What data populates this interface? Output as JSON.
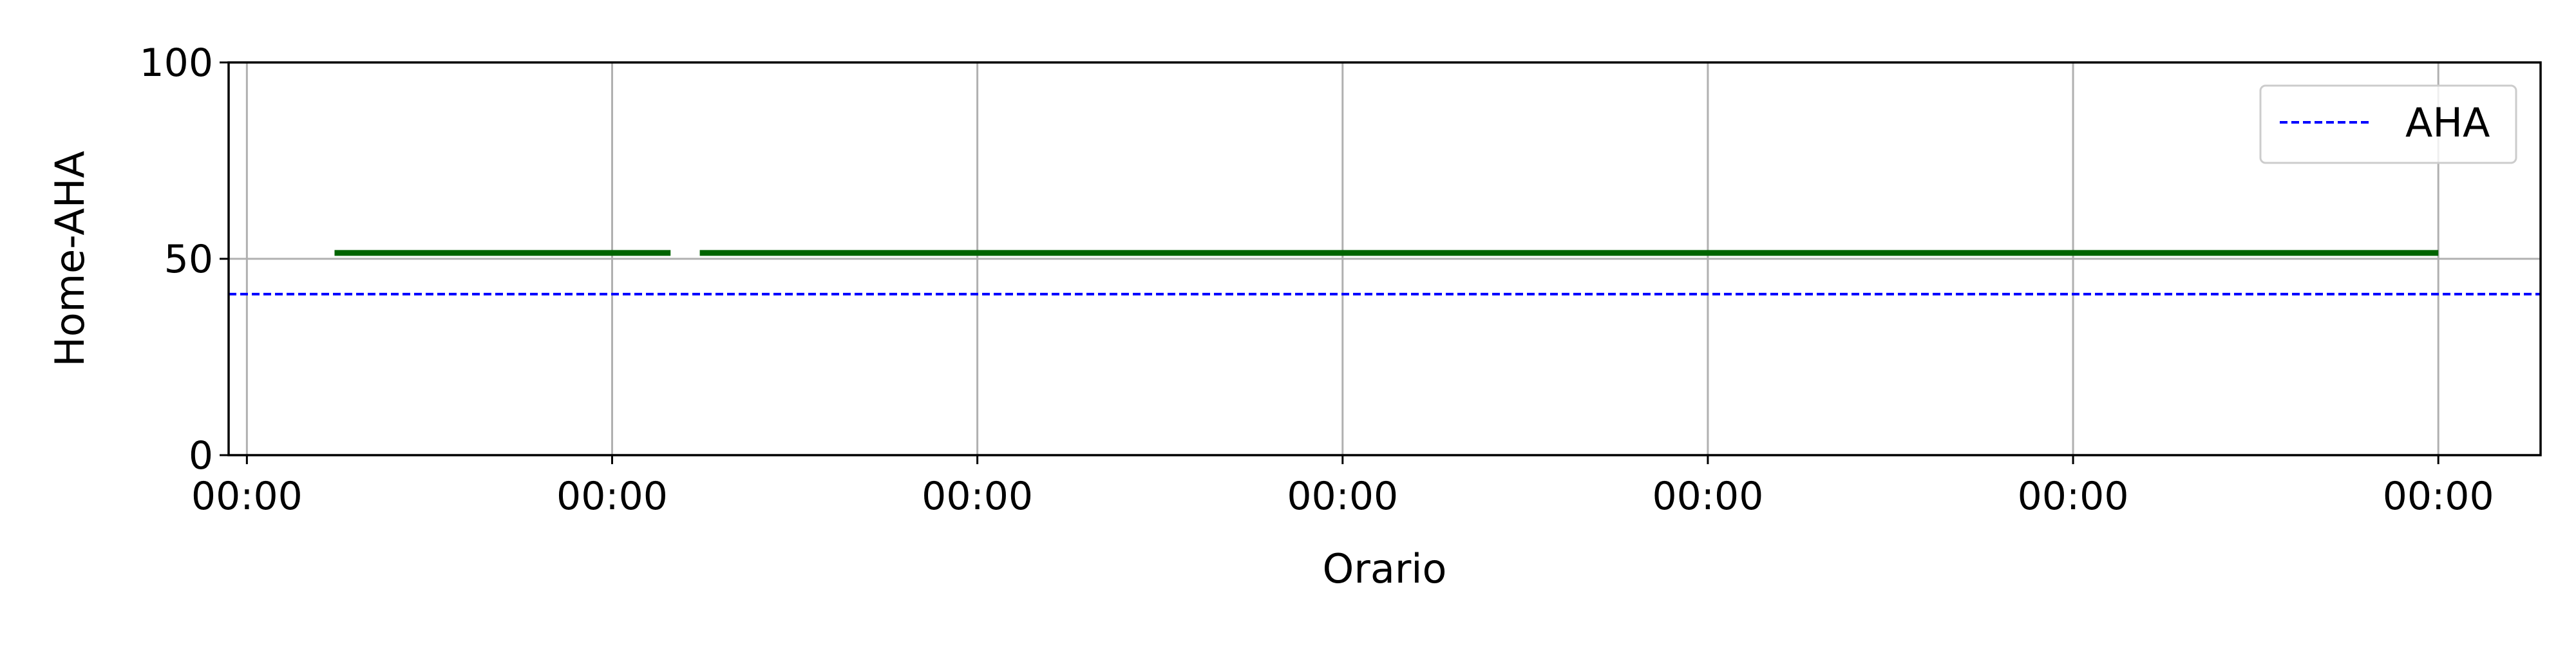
{
  "chart_data": {
    "type": "line",
    "title": "",
    "xlabel": "Orario",
    "ylabel": "Home-AHA",
    "ylim": [
      0,
      100
    ],
    "yticks": [
      0,
      50,
      100
    ],
    "x_tick_labels": [
      "00:00",
      "00:00",
      "00:00",
      "00:00",
      "00:00",
      "00:00",
      "00:00"
    ],
    "xlim": [
      -0.05,
      6.28
    ],
    "grid": true,
    "legend": {
      "placement": "top-right",
      "entries": [
        "AHA"
      ]
    },
    "series": [
      {
        "color": "#006400",
        "line_style": "solid",
        "segments": [
          {
            "x": [
              0.24,
              1.16
            ],
            "y": [
              51.5,
              51.5
            ]
          },
          {
            "x": [
              1.24,
              6.0
            ],
            "y": [
              51.5,
              51.5
            ]
          }
        ]
      },
      {
        "name": "AHA",
        "color": "#0000ff",
        "line_style": "dashed",
        "constant_y": 41
      }
    ]
  }
}
